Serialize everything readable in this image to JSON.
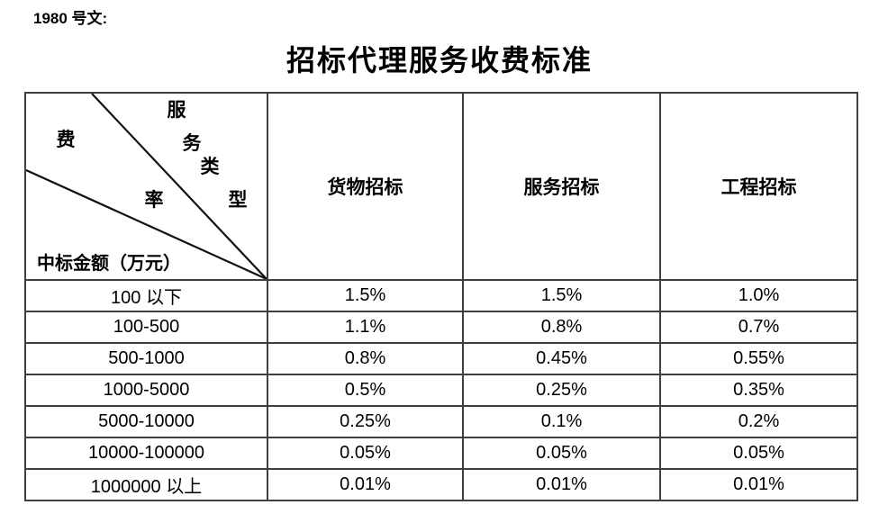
{
  "page": {
    "doc_ref": "1980 号文:",
    "title": "招标代理服务收费标准"
  },
  "table": {
    "corner": {
      "service_type_chars": [
        "服",
        "务",
        "类",
        "型"
      ],
      "rate_chars": [
        "费",
        "率"
      ],
      "amount_label": "中标金额（万元）"
    },
    "columns": [
      "货物招标",
      "服务招标",
      "工程招标"
    ],
    "rows": [
      {
        "range": "100 以下",
        "values": [
          "1.5%",
          "1.5%",
          "1.0%"
        ]
      },
      {
        "range": "100-500",
        "values": [
          "1.1%",
          "0.8%",
          "0.7%"
        ]
      },
      {
        "range": "500-1000",
        "values": [
          "0.8%",
          "0.45%",
          "0.55%"
        ]
      },
      {
        "range": "1000-5000",
        "values": [
          "0.5%",
          "0.25%",
          "0.35%"
        ]
      },
      {
        "range": "5000-10000",
        "values": [
          "0.25%",
          "0.1%",
          "0.2%"
        ]
      },
      {
        "range": "10000-100000",
        "values": [
          "0.05%",
          "0.05%",
          "0.05%"
        ]
      },
      {
        "range": "1000000 以上",
        "values": [
          "0.01%",
          "0.01%",
          "0.01%"
        ]
      }
    ],
    "colors": {
      "border": "#3f3f3f",
      "text": "#000000",
      "background": "#ffffff"
    }
  }
}
